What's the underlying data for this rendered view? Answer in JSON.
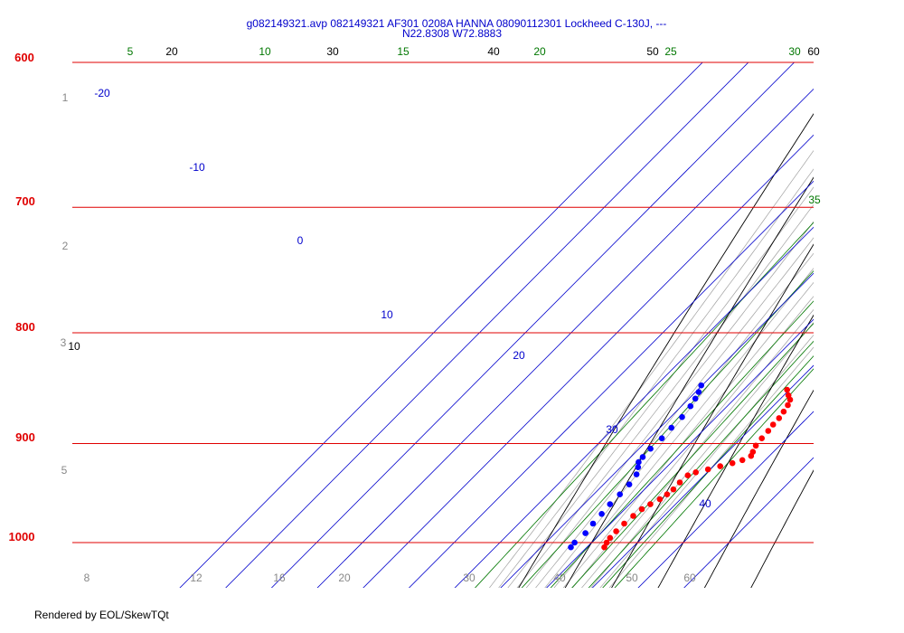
{
  "footer": "Rendered by EOL/SkewTQt",
  "chart_data": {
    "type": "scatter",
    "title_line1": "g082149321.avp 082149321 AF301 0208A HANNA 08090112301 Lockheed C-130J, ---",
    "title_line2": "N22.8308 W72.8883",
    "pressure_levels": [
      {
        "label": "600",
        "p": 600
      },
      {
        "label": "700",
        "p": 700
      },
      {
        "label": "800",
        "p": 800
      },
      {
        "label": "900",
        "p": 900
      },
      {
        "label": "1000",
        "p": 1000
      }
    ],
    "height_labels": [
      "1",
      "2",
      "3",
      "5"
    ],
    "bottom_labels": [
      "8",
      "12",
      "16",
      "20",
      "30",
      "40",
      "50",
      "60"
    ],
    "isotherm_labels": [
      "-20",
      "-10",
      "0",
      "10",
      "20",
      "30",
      "40"
    ],
    "dry_adiabat_labels": [
      "20",
      "30",
      "40",
      "50",
      "60",
      "10"
    ],
    "mixing_ratio_labels": [
      "5",
      "10",
      "15",
      "20",
      "25",
      "30",
      "35"
    ],
    "colors": {
      "isobar": "#e00000",
      "isotherm": "#0000cc",
      "dry_adiabat": "#000000",
      "moist_adiabat": "#a0a0a0",
      "mixing_ratio": "#007700",
      "temperature": "#ff0000",
      "dewpoint": "#0000ff"
    },
    "series": [
      {
        "name": "",
        "color": "#ff0000",
        "points": [
          {
            "p": 1005,
            "t": 23.8
          },
          {
            "p": 1000,
            "t": 23.3
          },
          {
            "p": 995,
            "t": 23.0
          },
          {
            "p": 988,
            "t": 22.9
          },
          {
            "p": 980,
            "t": 23.0
          },
          {
            "p": 972,
            "t": 23.3
          },
          {
            "p": 965,
            "t": 23.7
          },
          {
            "p": 960,
            "t": 24.5
          },
          {
            "p": 955,
            "t": 25.5
          },
          {
            "p": 950,
            "t": 26.0
          },
          {
            "p": 945,
            "t": 26.3
          },
          {
            "p": 938,
            "t": 26.2
          },
          {
            "p": 931,
            "t": 26.4
          },
          {
            "p": 928,
            "t": 27.5
          },
          {
            "p": 925,
            "t": 29.5
          },
          {
            "p": 922,
            "t": 31.5
          },
          {
            "p": 919,
            "t": 33.5
          },
          {
            "p": 916,
            "t": 35.0
          },
          {
            "p": 912,
            "t": 36.0
          },
          {
            "p": 908,
            "t": 35.5
          },
          {
            "p": 902,
            "t": 34.8
          },
          {
            "p": 895,
            "t": 34.5
          },
          {
            "p": 888,
            "t": 34.3
          },
          {
            "p": 882,
            "t": 34.0
          },
          {
            "p": 876,
            "t": 33.9
          },
          {
            "p": 870,
            "t": 33.5
          },
          {
            "p": 864,
            "t": 33.0
          },
          {
            "p": 859,
            "t": 32.3
          },
          {
            "p": 855,
            "t": 31.0
          },
          {
            "p": 850,
            "t": 29.5
          }
        ]
      },
      {
        "name": "",
        "color": "#0000ff",
        "points": [
          {
            "p": 1005,
            "t": 16.5
          },
          {
            "p": 1000,
            "t": 16.3
          },
          {
            "p": 990,
            "t": 16.6
          },
          {
            "p": 980,
            "t": 16.2
          },
          {
            "p": 970,
            "t": 16.0
          },
          {
            "p": 960,
            "t": 15.7
          },
          {
            "p": 950,
            "t": 15.7
          },
          {
            "p": 940,
            "t": 15.6
          },
          {
            "p": 930,
            "t": 15.0
          },
          {
            "p": 923,
            "t": 13.8
          },
          {
            "p": 918,
            "t": 12.8
          },
          {
            "p": 913,
            "t": 12.6
          },
          {
            "p": 905,
            "t": 12.5
          },
          {
            "p": 895,
            "t": 12.7
          },
          {
            "p": 885,
            "t": 12.5
          },
          {
            "p": 875,
            "t": 12.5
          },
          {
            "p": 865,
            "t": 12.0
          },
          {
            "p": 858,
            "t": 11.4
          },
          {
            "p": 852,
            "t": 10.7
          },
          {
            "p": 846,
            "t": 9.8
          }
        ]
      }
    ]
  }
}
